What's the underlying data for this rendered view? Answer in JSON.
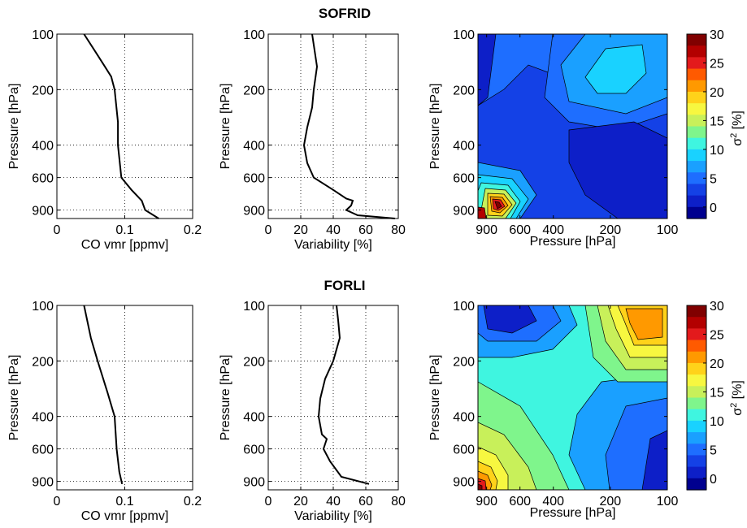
{
  "figure": {
    "rows": [
      {
        "title": "SOFRID",
        "panels": [
          {
            "type": "line",
            "xlabel": "CO vmr [ppmv]",
            "ylabel": "Pressure [hPa]",
            "xlim": [
              0,
              0.2
            ],
            "xticks": [
              0,
              0.1,
              0.2
            ],
            "xtick_labels": [
              "0",
              "0.1",
              "0.2"
            ],
            "yticks": [
              100,
              200,
              400,
              600,
              900
            ],
            "ytick_labels": [
              "100",
              "200",
              "400",
              "600",
              "900"
            ],
            "y_scale": "log, reversed",
            "grid": "dotted",
            "series": [
              {
                "x": [
                  0.04,
                  0.06,
                  0.08,
                  0.085,
                  0.09,
                  0.09,
                  0.095,
                  0.11,
                  0.125,
                  0.13,
                  0.15
                ],
                "y": [
                  100,
                  130,
                  170,
                  200,
                  300,
                  400,
                  600,
                  700,
                  800,
                  900,
                  1000
                ]
              }
            ]
          },
          {
            "type": "line",
            "xlabel": "Variability [%]",
            "ylabel": "Pressure [hPa]",
            "xlim": [
              0,
              80
            ],
            "xticks": [
              0,
              20,
              40,
              60,
              80
            ],
            "xtick_labels": [
              "0",
              "20",
              "40",
              "60",
              "80"
            ],
            "yticks": [
              100,
              200,
              400,
              600,
              900
            ],
            "ytick_labels": [
              "100",
              "200",
              "400",
              "600",
              "900"
            ],
            "y_scale": "log, reversed",
            "grid": "dotted",
            "series": [
              {
                "x": [
                  27,
                  30,
                  28,
                  27,
                  24,
                  22,
                  24,
                  28,
                  40,
                  48,
                  52,
                  51,
                  48,
                  55,
                  78
                ],
                "y": [
                  100,
                  150,
                  200,
                  250,
                  320,
                  400,
                  500,
                  600,
                  700,
                  780,
                  800,
                  850,
                  900,
                  960,
                  1000
                ]
              }
            ]
          },
          {
            "type": "heatmap",
            "xlabel": "Pressure [hPa]",
            "ylabel": "Pressure [hPa]",
            "xticks": [
              900,
              600,
              400,
              200,
              100
            ],
            "xtick_labels": [
              "900",
              "600",
              "400",
              "200",
              "100"
            ],
            "yticks": [
              100,
              200,
              400,
              600,
              900
            ],
            "ytick_labels": [
              "100",
              "200",
              "400",
              "600",
              "900"
            ]
          }
        ]
      },
      {
        "title": "FORLI",
        "panels": [
          {
            "type": "line",
            "xlabel": "CO vmr [ppmv]",
            "ylabel": "Pressure [hPa]",
            "xlim": [
              0,
              0.2
            ],
            "xticks": [
              0,
              0.1,
              0.2
            ],
            "xtick_labels": [
              "0",
              "0.1",
              "0.2"
            ],
            "yticks": [
              100,
              200,
              400,
              600,
              900
            ],
            "ytick_labels": [
              "100",
              "200",
              "400",
              "600",
              "900"
            ],
            "y_scale": "log, reversed",
            "grid": "dotted",
            "series": [
              {
                "x": [
                  0.04,
                  0.05,
                  0.06,
                  0.075,
                  0.085,
                  0.088,
                  0.092,
                  0.096
                ],
                "y": [
                  100,
                  150,
                  200,
                  300,
                  400,
                  600,
                  800,
                  930
                ]
              }
            ]
          },
          {
            "type": "line",
            "xlabel": "Variability [%]",
            "ylabel": "Pressure [hPa]",
            "xlim": [
              0,
              80
            ],
            "xticks": [
              0,
              20,
              40,
              60,
              80
            ],
            "xtick_labels": [
              "0",
              "20",
              "40",
              "60",
              "80"
            ],
            "yticks": [
              100,
              200,
              400,
              600,
              900
            ],
            "ytick_labels": [
              "100",
              "200",
              "400",
              "600",
              "900"
            ],
            "y_scale": "log, reversed",
            "grid": "dotted",
            "series": [
              {
                "x": [
                  42,
                  43,
                  44,
                  40,
                  35,
                  32,
                  31,
                  33,
                  36,
                  34,
                  38,
                  45,
                  62
                ],
                "y": [
                  100,
                  120,
                  150,
                  200,
                  250,
                  320,
                  400,
                  500,
                  530,
                  600,
                  700,
                  850,
                  930
                ]
              }
            ]
          },
          {
            "type": "heatmap",
            "xlabel": "Pressure [hPa]",
            "ylabel": "Pressure [hPa]",
            "xticks": [
              900,
              600,
              400,
              200,
              100
            ],
            "xtick_labels": [
              "900",
              "600",
              "400",
              "200",
              "100"
            ],
            "yticks": [
              100,
              200,
              400,
              600,
              900
            ],
            "ytick_labels": [
              "100",
              "200",
              "400",
              "600",
              "900"
            ]
          }
        ]
      }
    ],
    "colorbar": {
      "label_prefix": "σ",
      "label_sup": "2",
      "label_suffix": " [%]",
      "ticks": [
        30,
        25,
        20,
        15,
        10,
        5,
        0
      ],
      "tick_labels": [
        "30",
        "25",
        "20",
        "15",
        "10",
        "5",
        "0"
      ],
      "colors": [
        "#800000",
        "#b30000",
        "#e31a1c",
        "#ff5a00",
        "#ff9900",
        "#ffd21a",
        "#f7f740",
        "#c8f05a",
        "#7ff58c",
        "#3ff5e0",
        "#19d2ff",
        "#1aa0ff",
        "#1e6eff",
        "#1441e6",
        "#0d1fc8",
        "#00008f"
      ]
    }
  },
  "chart_data": [
    {
      "type": "line",
      "title": "SOFRID",
      "xlabel": "CO vmr [ppmv]",
      "ylabel": "Pressure [hPa]",
      "xlim": [
        0,
        0.2
      ],
      "series": [
        {
          "x": [
            0.04,
            0.06,
            0.08,
            0.085,
            0.09,
            0.09,
            0.095,
            0.11,
            0.125,
            0.13,
            0.15
          ],
          "y": [
            100,
            130,
            170,
            200,
            300,
            400,
            600,
            700,
            800,
            900,
            1000
          ]
        }
      ]
    },
    {
      "type": "line",
      "title": "SOFRID",
      "xlabel": "Variability [%]",
      "ylabel": "Pressure [hPa]",
      "xlim": [
        0,
        80
      ],
      "series": [
        {
          "x": [
            27,
            30,
            28,
            27,
            24,
            22,
            24,
            28,
            40,
            48,
            52,
            51,
            48,
            55,
            78
          ],
          "y": [
            100,
            150,
            200,
            250,
            320,
            400,
            500,
            600,
            700,
            780,
            800,
            850,
            900,
            960,
            1000
          ]
        }
      ]
    },
    {
      "type": "heatmap",
      "title": "SOFRID",
      "xlabel": "Pressure [hPa]",
      "ylabel": "Pressure [hPa]",
      "colorbar_range": [
        -2,
        30
      ]
    },
    {
      "type": "line",
      "title": "FORLI",
      "xlabel": "CO vmr [ppmv]",
      "ylabel": "Pressure [hPa]",
      "xlim": [
        0,
        0.2
      ],
      "series": [
        {
          "x": [
            0.04,
            0.05,
            0.06,
            0.075,
            0.085,
            0.088,
            0.092,
            0.096
          ],
          "y": [
            100,
            150,
            200,
            300,
            400,
            600,
            800,
            930
          ]
        }
      ]
    },
    {
      "type": "line",
      "title": "FORLI",
      "xlabel": "Variability [%]",
      "ylabel": "Pressure [hPa]",
      "xlim": [
        0,
        80
      ],
      "series": [
        {
          "x": [
            42,
            43,
            44,
            40,
            35,
            32,
            31,
            33,
            36,
            34,
            38,
            45,
            62
          ],
          "y": [
            100,
            120,
            150,
            200,
            250,
            320,
            400,
            500,
            530,
            600,
            700,
            850,
            930
          ]
        }
      ]
    },
    {
      "type": "heatmap",
      "title": "FORLI",
      "xlabel": "Pressure [hPa]",
      "ylabel": "Pressure [hPa]",
      "colorbar_range": [
        -2,
        30
      ]
    }
  ]
}
